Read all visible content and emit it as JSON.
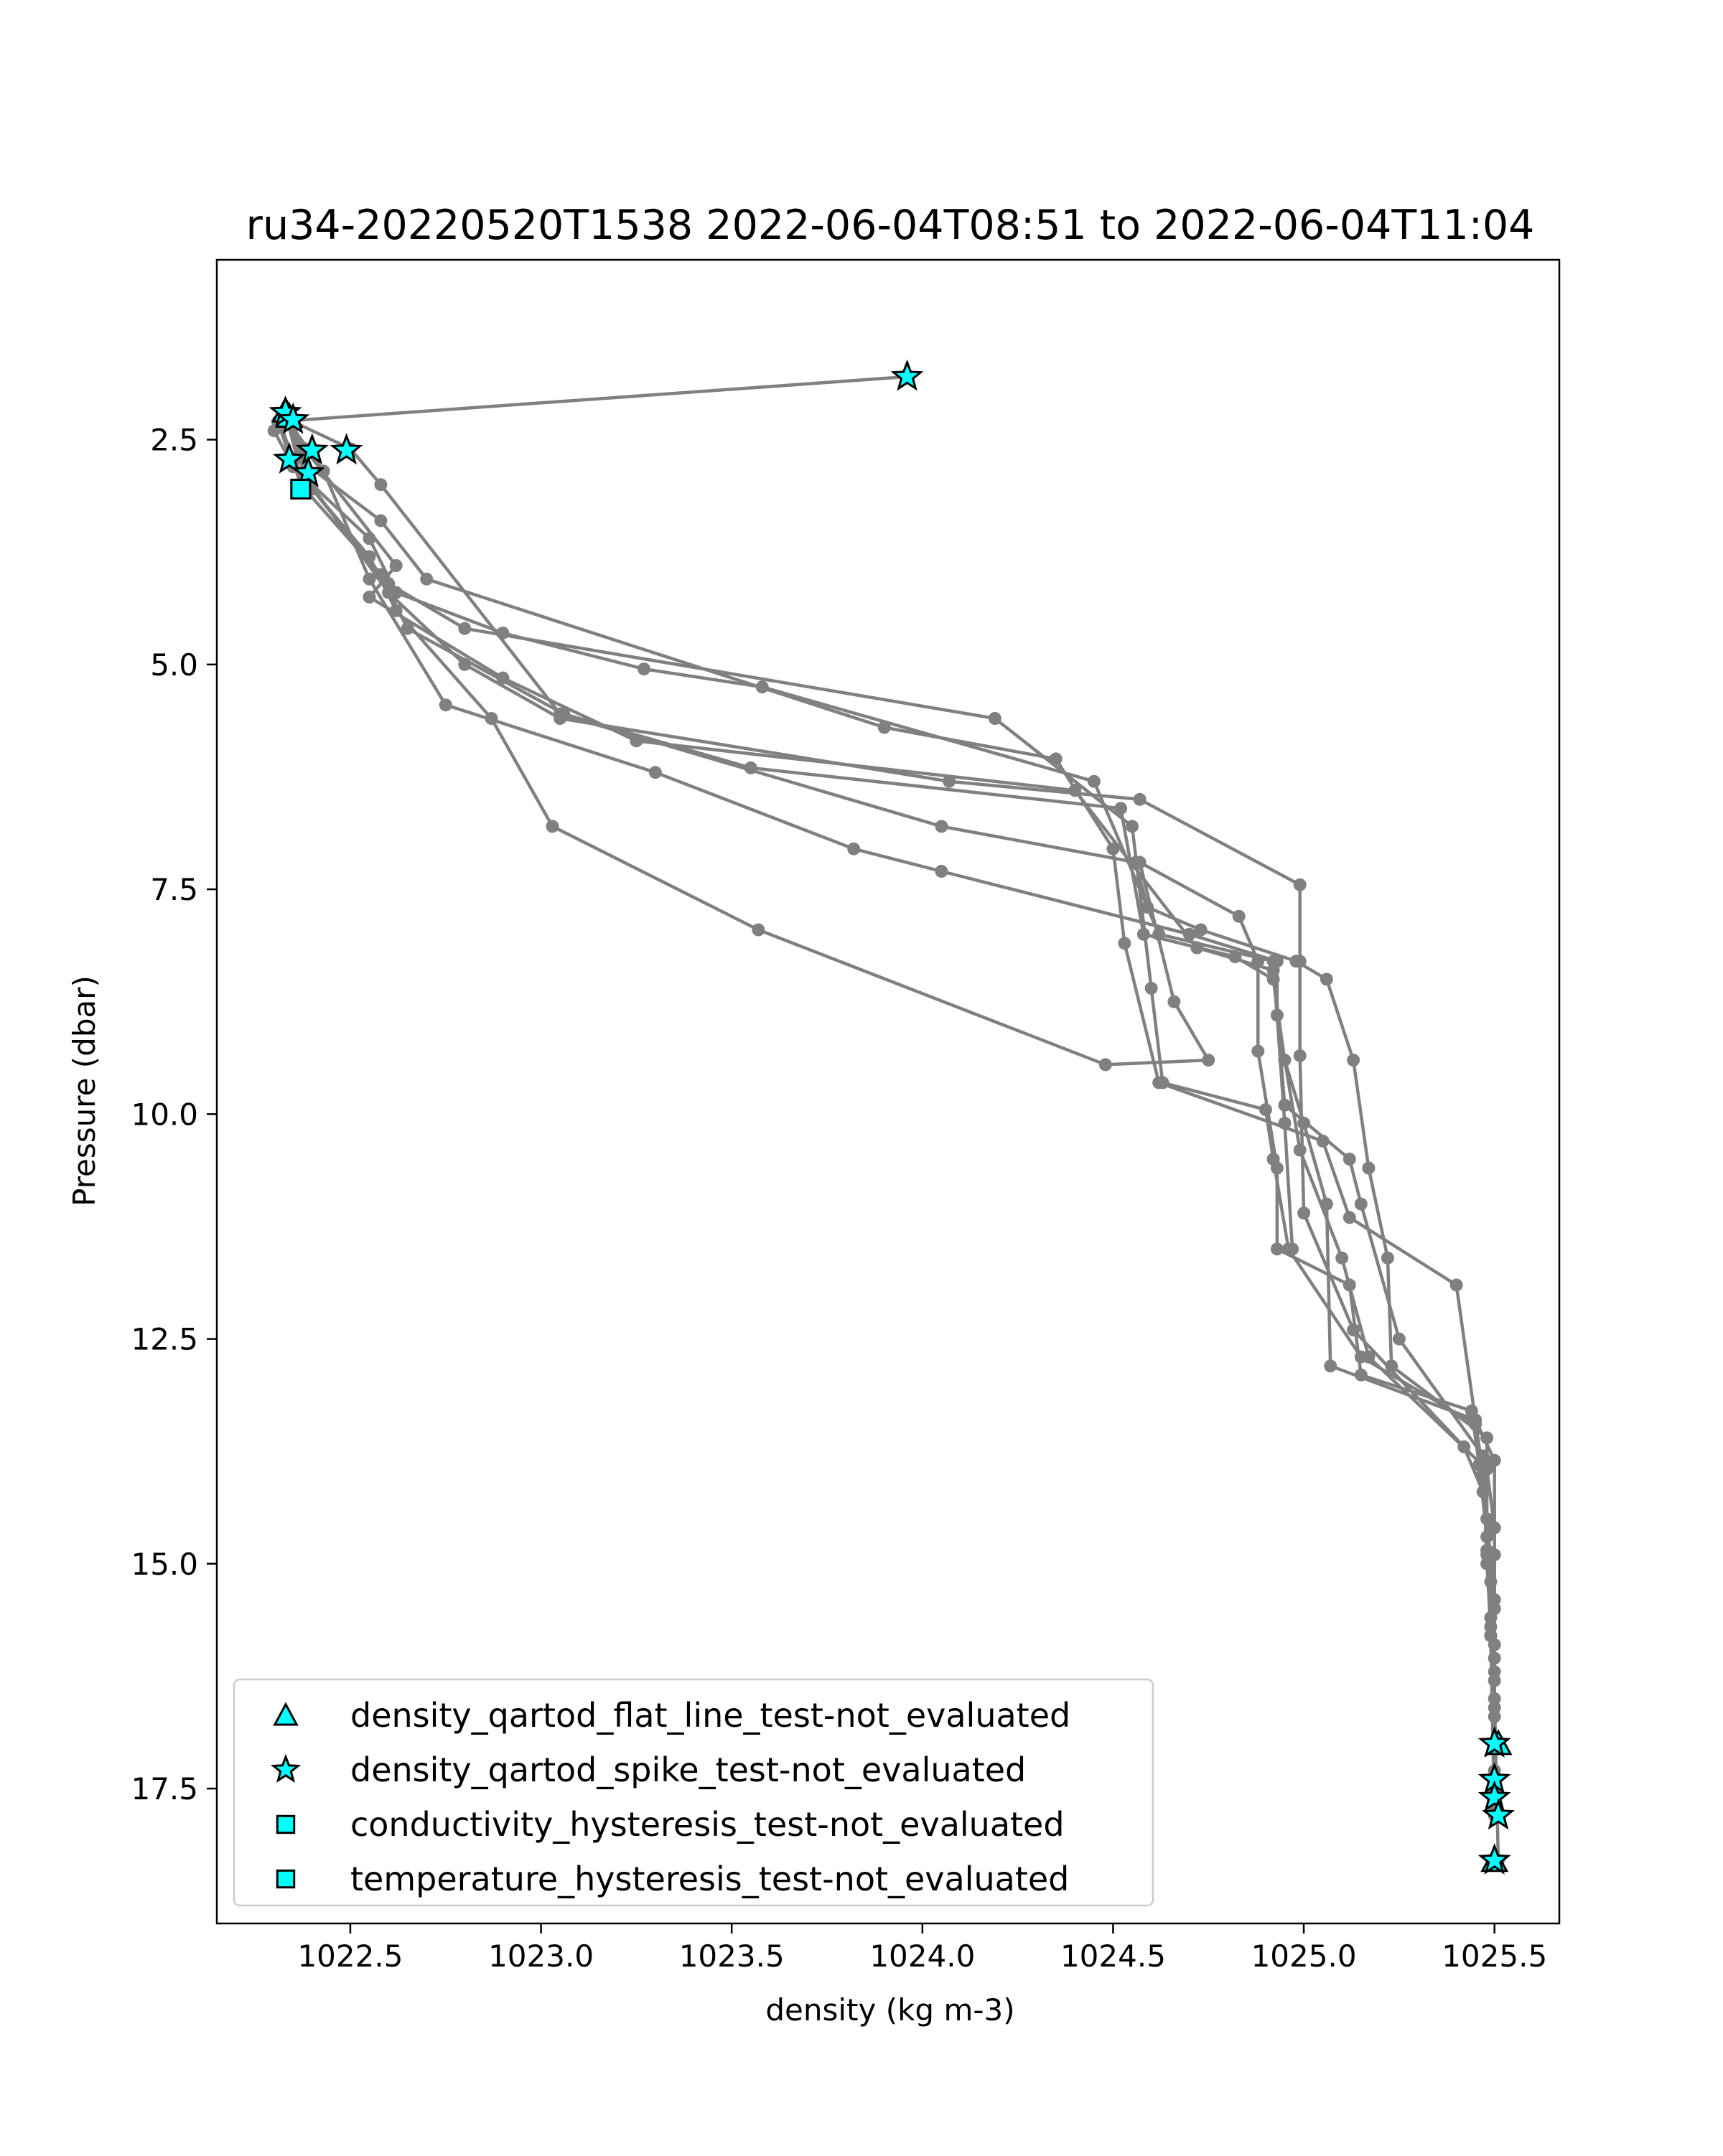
{
  "chart_data": {
    "type": "scatter",
    "title": "ru34-20220520T1538 2022-06-04T08:51 to 2022-06-04T11:04",
    "xlabel": "density (kg m-3)",
    "ylabel": "Pressure (dbar)",
    "xlim": [
      1022.15,
      1025.67
    ],
    "ylim": [
      19.0,
      0.5
    ],
    "y_inverted": true,
    "grid": false,
    "x_ticks": [
      1022.5,
      1023.0,
      1023.5,
      1024.0,
      1024.5,
      1025.0,
      1025.5
    ],
    "x_tick_labels": [
      "1022.5",
      "1023.0",
      "1023.5",
      "1024.0",
      "1024.5",
      "1025.0",
      "1025.5"
    ],
    "y_ticks": [
      2.5,
      5.0,
      7.5,
      10.0,
      12.5,
      15.0,
      17.5
    ],
    "y_tick_labels": [
      "2.5",
      "5.0",
      "7.5",
      "10.0",
      "12.5",
      "15.0",
      "17.5"
    ],
    "legend_position": "lower-left",
    "colors": {
      "profile_line": "#808080",
      "flag_marker_fill": "#00ffff",
      "flag_marker_edge": "#000000"
    },
    "series": [
      {
        "kind": "profile",
        "points": [
          [
            1023.96,
            1.8
          ],
          [
            1022.31,
            2.3
          ],
          [
            1022.35,
            2.8
          ],
          [
            1022.55,
            3.6
          ],
          [
            1022.62,
            4.2
          ],
          [
            1022.9,
            4.65
          ],
          [
            1023.27,
            5.05
          ],
          [
            1023.58,
            5.25
          ],
          [
            1024.45,
            6.3
          ],
          [
            1024.62,
            8.0
          ],
          [
            1024.92,
            8.3
          ],
          [
            1024.95,
            10.1
          ],
          [
            1024.97,
            11.5
          ]
        ]
      },
      {
        "kind": "profile",
        "points": [
          [
            1022.33,
            2.2
          ],
          [
            1022.36,
            2.7
          ],
          [
            1022.58,
            3.4
          ],
          [
            1022.7,
            4.05
          ],
          [
            1023.9,
            5.7
          ],
          [
            1024.35,
            6.05
          ],
          [
            1024.5,
            7.05
          ],
          [
            1024.53,
            8.1
          ],
          [
            1024.62,
            9.65
          ],
          [
            1025.05,
            10.3
          ],
          [
            1025.12,
            11.15
          ],
          [
            1025.4,
            11.9
          ],
          [
            1025.45,
            13.4
          ],
          [
            1025.47,
            14.0
          ],
          [
            1025.48,
            14.9
          ],
          [
            1025.49,
            15.6
          ],
          [
            1025.5,
            16.3
          ],
          [
            1025.5,
            17.0
          ]
        ]
      },
      {
        "kind": "profile",
        "points": [
          [
            1022.34,
            2.25
          ],
          [
            1022.38,
            2.9
          ],
          [
            1022.6,
            4.2
          ],
          [
            1022.8,
            5.0
          ],
          [
            1023.05,
            5.6
          ],
          [
            1024.07,
            6.3
          ],
          [
            1024.57,
            6.5
          ],
          [
            1024.99,
            7.45
          ],
          [
            1024.99,
            8.3
          ],
          [
            1024.99,
            9.35
          ],
          [
            1025.0,
            11.1
          ],
          [
            1025.13,
            12.4
          ],
          [
            1025.42,
            13.7
          ],
          [
            1025.47,
            14.2
          ],
          [
            1025.49,
            15.2
          ],
          [
            1025.5,
            16.05
          ],
          [
            1025.5,
            17.4
          ]
        ]
      },
      {
        "kind": "profile",
        "points": [
          [
            1022.32,
            2.35
          ],
          [
            1022.37,
            3.0
          ],
          [
            1022.6,
            4.1
          ],
          [
            1022.8,
            4.6
          ],
          [
            1024.19,
            5.6
          ],
          [
            1024.55,
            6.8
          ],
          [
            1024.6,
            8.6
          ],
          [
            1024.63,
            9.65
          ],
          [
            1024.9,
            9.95
          ],
          [
            1024.92,
            10.5
          ],
          [
            1024.96,
            11.5
          ],
          [
            1025.15,
            12.7
          ],
          [
            1025.45,
            13.45
          ],
          [
            1025.48,
            14.5
          ],
          [
            1025.5,
            15.4
          ],
          [
            1025.5,
            16.6
          ],
          [
            1025.5,
            17.7
          ]
        ]
      },
      {
        "kind": "profile",
        "points": [
          [
            1022.35,
            2.3
          ],
          [
            1022.5,
            2.6
          ],
          [
            1022.58,
            3.0
          ],
          [
            1023.05,
            5.55
          ],
          [
            1024.05,
            6.8
          ],
          [
            1024.56,
            7.2
          ],
          [
            1024.59,
            7.7
          ],
          [
            1024.73,
            7.95
          ],
          [
            1024.98,
            8.3
          ],
          [
            1025.06,
            8.5
          ],
          [
            1025.13,
            9.4
          ],
          [
            1025.17,
            10.6
          ],
          [
            1025.22,
            11.6
          ],
          [
            1025.23,
            12.8
          ],
          [
            1025.48,
            13.6
          ],
          [
            1025.48,
            14.85
          ],
          [
            1025.49,
            15.8
          ],
          [
            1025.5,
            17.8
          ]
        ]
      },
      {
        "kind": "profile",
        "points": [
          [
            1022.33,
            2.25
          ],
          [
            1022.43,
            2.85
          ],
          [
            1022.55,
            4.05
          ],
          [
            1022.75,
            5.45
          ],
          [
            1023.3,
            6.2
          ],
          [
            1023.82,
            7.05
          ],
          [
            1024.05,
            7.3
          ],
          [
            1024.7,
            8.0
          ],
          [
            1024.93,
            8.3
          ],
          [
            1024.93,
            8.9
          ],
          [
            1024.99,
            10.4
          ],
          [
            1025.1,
            11.6
          ],
          [
            1025.17,
            12.7
          ],
          [
            1025.48,
            13.95
          ],
          [
            1025.5,
            14.6
          ],
          [
            1025.5,
            15.5
          ],
          [
            1025.5,
            16.5
          ],
          [
            1025.51,
            18.3
          ]
        ]
      },
      {
        "kind": "profile",
        "points": [
          [
            1022.3,
            2.4
          ],
          [
            1022.35,
            2.8
          ],
          [
            1022.55,
            3.8
          ],
          [
            1022.62,
            4.4
          ],
          [
            1022.87,
            5.6
          ],
          [
            1023.03,
            6.8
          ],
          [
            1023.57,
            7.95
          ],
          [
            1024.48,
            9.45
          ],
          [
            1024.75,
            9.4
          ],
          [
            1024.66,
            8.75
          ],
          [
            1024.57,
            7.2
          ],
          [
            1024.83,
            7.8
          ],
          [
            1024.88,
            8.3
          ],
          [
            1024.88,
            9.3
          ],
          [
            1024.93,
            10.6
          ],
          [
            1024.93,
            11.5
          ],
          [
            1025.12,
            11.9
          ],
          [
            1025.15,
            12.9
          ],
          [
            1025.44,
            13.3
          ],
          [
            1025.46,
            13.9
          ],
          [
            1025.48,
            14.7
          ],
          [
            1025.49,
            15.8
          ],
          [
            1025.5,
            16.2
          ],
          [
            1025.5,
            17.3
          ]
        ]
      },
      {
        "kind": "profile",
        "points": [
          [
            1022.35,
            2.35
          ],
          [
            1022.4,
            3.05
          ],
          [
            1022.58,
            4.0
          ],
          [
            1022.65,
            4.6
          ],
          [
            1023.06,
            5.55
          ],
          [
            1023.55,
            6.15
          ],
          [
            1024.52,
            6.6
          ],
          [
            1024.58,
            8.0
          ],
          [
            1024.82,
            8.25
          ],
          [
            1024.92,
            8.5
          ],
          [
            1024.95,
            9.4
          ],
          [
            1025.0,
            10.1
          ],
          [
            1025.06,
            11.0
          ],
          [
            1025.07,
            12.8
          ],
          [
            1025.45,
            13.4
          ],
          [
            1025.5,
            13.85
          ],
          [
            1025.5,
            14.9
          ],
          [
            1025.5,
            15.9
          ],
          [
            1025.5,
            16.7
          ],
          [
            1025.5,
            17.55
          ]
        ]
      },
      {
        "kind": "profile",
        "points": [
          [
            1022.33,
            2.2
          ],
          [
            1022.38,
            2.6
          ],
          [
            1022.62,
            3.9
          ],
          [
            1022.55,
            4.25
          ],
          [
            1022.9,
            5.15
          ],
          [
            1023.25,
            5.85
          ],
          [
            1024.4,
            6.4
          ],
          [
            1024.72,
            8.15
          ],
          [
            1024.92,
            8.4
          ],
          [
            1024.95,
            9.9
          ],
          [
            1025.12,
            10.5
          ],
          [
            1025.15,
            11.0
          ],
          [
            1025.25,
            12.5
          ],
          [
            1025.47,
            13.8
          ],
          [
            1025.48,
            15.0
          ],
          [
            1025.49,
            15.7
          ],
          [
            1025.5,
            17.05
          ]
        ]
      },
      {
        "kind": "flag",
        "name": "density_qartod_flat_line_test-not_evaluated",
        "marker": "triangle",
        "points": [
          [
            1022.33,
            2.18
          ],
          [
            1022.34,
            2.24
          ],
          [
            1025.5,
            18.3
          ],
          [
            1025.51,
            17.0
          ]
        ]
      },
      {
        "kind": "flag",
        "name": "density_qartod_spike_test-not_evaluated",
        "marker": "star",
        "points": [
          [
            1023.96,
            1.8
          ],
          [
            1022.33,
            2.2
          ],
          [
            1022.35,
            2.28
          ],
          [
            1022.4,
            2.62
          ],
          [
            1022.49,
            2.62
          ],
          [
            1022.34,
            2.72
          ],
          [
            1022.39,
            2.87
          ],
          [
            1025.5,
            17.0
          ],
          [
            1025.5,
            17.4
          ],
          [
            1025.5,
            17.6
          ],
          [
            1025.51,
            17.8
          ],
          [
            1025.5,
            18.3
          ]
        ]
      },
      {
        "kind": "flag",
        "name": "conductivity_hysteresis_test-not_evaluated",
        "marker": "square",
        "points": [
          [
            1022.37,
            3.05
          ]
        ]
      },
      {
        "kind": "flag",
        "name": "temperature_hysteresis_test-not_evaluated",
        "marker": "square",
        "points": [
          [
            1022.37,
            3.05
          ]
        ]
      }
    ],
    "legend": [
      {
        "label": "density_qartod_flat_line_test-not_evaluated",
        "marker": "triangle"
      },
      {
        "label": "density_qartod_spike_test-not_evaluated",
        "marker": "star"
      },
      {
        "label": "conductivity_hysteresis_test-not_evaluated",
        "marker": "square"
      },
      {
        "label": "temperature_hysteresis_test-not_evaluated",
        "marker": "square"
      }
    ]
  }
}
